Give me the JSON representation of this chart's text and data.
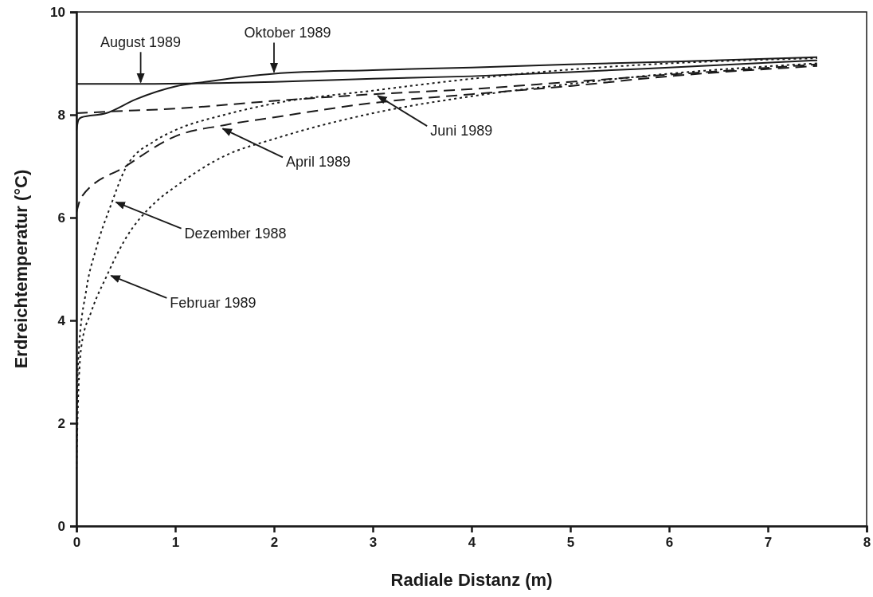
{
  "chart_data": {
    "type": "line",
    "xlabel": "Radiale Distanz (m)",
    "ylabel": "Erdreichtemperatur (°C)",
    "xlim": [
      0,
      8
    ],
    "xticks": [
      0,
      1,
      2,
      3,
      4,
      5,
      6,
      7,
      8
    ],
    "ylim": [
      0,
      10
    ],
    "yticks": [
      0,
      2,
      4,
      6,
      8,
      10
    ],
    "grid": false,
    "marker": "none",
    "series": [
      {
        "color": "#1a1a1a",
        "line_style": "solid",
        "x": [
          0,
          0.65,
          2,
          3,
          4,
          5,
          6,
          7.5
        ],
        "values": [
          8.6,
          8.6,
          8.64,
          8.7,
          8.75,
          8.83,
          8.92,
          9.06
        ]
      },
      {
        "color": "#1a1a1a",
        "line_style": "solid",
        "x": [
          0,
          0.02,
          0.05,
          0.3,
          0.6,
          1,
          1.3,
          2,
          3,
          4,
          5,
          6,
          7.5
        ],
        "values": [
          7.7,
          7.9,
          7.95,
          8.03,
          8.3,
          8.55,
          8.64,
          8.8,
          8.87,
          8.92,
          8.98,
          9.03,
          9.12
        ]
      },
      {
        "color": "#1a1a1a",
        "line_style": "dashed",
        "x": [
          0,
          0.3,
          1,
          2,
          3,
          4,
          5,
          6,
          7.5
        ],
        "values": [
          8.03,
          8.06,
          8.12,
          8.27,
          8.4,
          8.5,
          8.64,
          8.78,
          8.98
        ]
      },
      {
        "color": "#1a1a1a",
        "line_style": "dashed",
        "x": [
          0,
          0.05,
          0.5,
          1,
          1.5,
          2,
          3,
          4,
          5,
          6,
          7.5
        ],
        "values": [
          6.1,
          6.4,
          7.0,
          7.58,
          7.8,
          7.95,
          8.23,
          8.4,
          8.56,
          8.75,
          8.95
        ]
      },
      {
        "color": "#1a1a1a",
        "line_style": "dotted",
        "x": [
          0,
          0.01,
          0.02,
          0.1,
          0.2,
          0.35,
          0.5,
          0.8,
          1,
          1.5,
          2,
          3,
          4,
          5,
          6,
          7.5
        ],
        "values": [
          1.5,
          2.8,
          3.3,
          4.6,
          5.4,
          6.25,
          6.97,
          7.5,
          7.7,
          8.0,
          8.22,
          8.47,
          8.7,
          8.88,
          9.0,
          9.1
        ]
      },
      {
        "color": "#1a1a1a",
        "line_style": "dotted",
        "x": [
          0,
          0.01,
          0.05,
          0.15,
          0.3,
          0.5,
          0.8,
          1,
          1.5,
          2,
          3,
          4,
          5,
          6,
          7.5
        ],
        "values": [
          1.1,
          2.0,
          3.5,
          4.17,
          4.84,
          5.6,
          6.3,
          6.6,
          7.2,
          7.53,
          8.03,
          8.36,
          8.6,
          8.8,
          9.0
        ]
      }
    ],
    "annotations": [
      {
        "text": "August 1989",
        "x": 0.65,
        "y": 8.6
      },
      {
        "text": "Oktober 1989",
        "x": 2,
        "y": 8.8
      },
      {
        "text": "Juni 1989",
        "x": 3.05,
        "y": 8.37
      },
      {
        "text": "April 1989",
        "x": 1.48,
        "y": 7.73
      },
      {
        "text": "Dezember 1988",
        "x": 0.4,
        "y": 6.3
      },
      {
        "text": "Februar 1989",
        "x": 0.35,
        "y": 4.87
      }
    ]
  }
}
